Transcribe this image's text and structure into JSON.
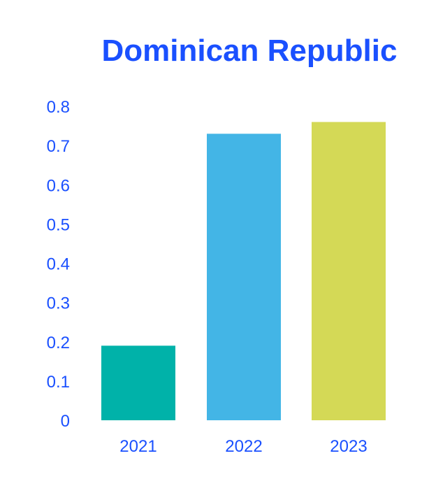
{
  "chart_data": {
    "type": "bar",
    "title": "Dominican Republic",
    "xlabel": "",
    "ylabel": "",
    "categories": [
      "2021",
      "2022",
      "2023"
    ],
    "values": [
      0.19,
      0.73,
      0.76
    ],
    "bar_colors": [
      "#00b2a9",
      "#43b5e6",
      "#d4d956"
    ],
    "ylim": [
      0,
      0.8
    ],
    "yticks": [
      "0",
      "0.1",
      "0.2",
      "0.3",
      "0.4",
      "0.5",
      "0.6",
      "0.7",
      "0.8"
    ],
    "grid": false,
    "legend": "none",
    "text_color": "#1a50ff"
  }
}
